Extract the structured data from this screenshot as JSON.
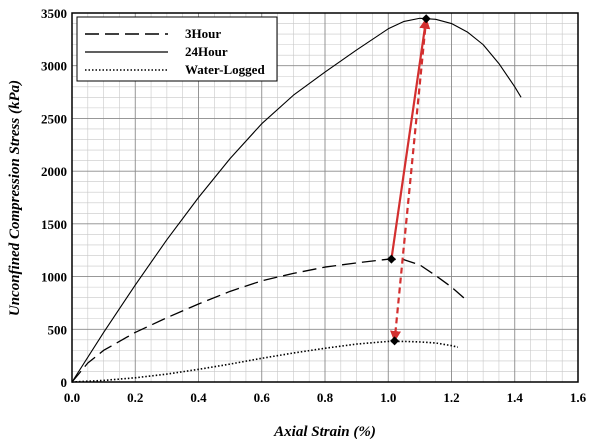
{
  "chart_data": {
    "type": "line",
    "xlabel": "Axial Strain (%)",
    "ylabel": "Unconfined Compression Stress (kPa)",
    "xlim": [
      0,
      1.6
    ],
    "ylim": [
      0,
      3500
    ],
    "x_ticks": [
      "0.0",
      "0.2",
      "0.4",
      "0.6",
      "0.8",
      "1.0",
      "1.2",
      "1.4",
      "1.6"
    ],
    "y_ticks": [
      "0",
      "500",
      "1000",
      "1500",
      "2000",
      "2500",
      "3000",
      "3500"
    ],
    "grid": true,
    "legend_position": "top-left",
    "series": [
      {
        "name": "3Hour",
        "style": "dashed",
        "color": "#000000",
        "x": [
          0,
          0.05,
          0.1,
          0.2,
          0.3,
          0.4,
          0.5,
          0.6,
          0.7,
          0.8,
          0.9,
          1.0,
          1.05,
          1.1,
          1.15,
          1.2,
          1.25
        ],
        "y": [
          0,
          180,
          300,
          470,
          610,
          740,
          860,
          960,
          1030,
          1090,
          1130,
          1165,
          1160,
          1110,
          1010,
          900,
          770
        ]
      },
      {
        "name": "24Hour",
        "style": "solid",
        "color": "#000000",
        "x": [
          0,
          0.1,
          0.2,
          0.3,
          0.4,
          0.5,
          0.6,
          0.7,
          0.8,
          0.9,
          1.0,
          1.05,
          1.1,
          1.15,
          1.2,
          1.25,
          1.3,
          1.35,
          1.4,
          1.42
        ],
        "y": [
          0,
          470,
          920,
          1350,
          1750,
          2120,
          2450,
          2720,
          2940,
          3150,
          3350,
          3420,
          3450,
          3440,
          3400,
          3320,
          3200,
          3020,
          2800,
          2700
        ]
      },
      {
        "name": "Water-Logged",
        "style": "dotted",
        "color": "#000000",
        "x": [
          0,
          0.1,
          0.2,
          0.3,
          0.4,
          0.5,
          0.6,
          0.7,
          0.8,
          0.9,
          1.0,
          1.05,
          1.1,
          1.15,
          1.2,
          1.22
        ],
        "y": [
          0,
          15,
          40,
          75,
          120,
          170,
          225,
          275,
          320,
          360,
          385,
          385,
          380,
          370,
          345,
          330
        ]
      }
    ],
    "markers": [
      {
        "x": 1.01,
        "y": 1165
      },
      {
        "x": 1.12,
        "y": 3445
      },
      {
        "x": 1.02,
        "y": 390
      }
    ],
    "arrows": [
      {
        "from": [
          1.01,
          1165
        ],
        "to": [
          1.12,
          3445
        ],
        "style": "solid",
        "color": "#d32f2f"
      },
      {
        "from": [
          1.12,
          3445
        ],
        "to": [
          1.02,
          390
        ],
        "style": "dashed",
        "color": "#d32f2f"
      }
    ]
  }
}
